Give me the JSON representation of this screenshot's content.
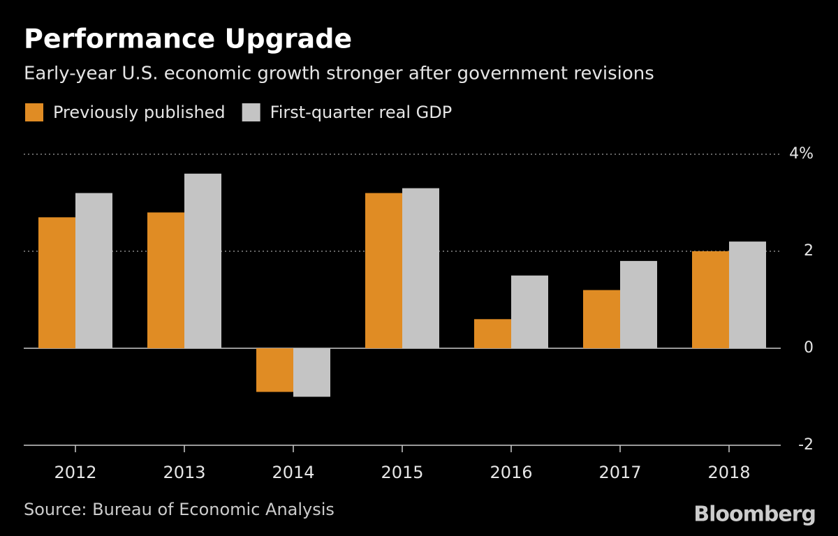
{
  "chart_data": {
    "type": "bar",
    "title": "Performance Upgrade",
    "subtitle": "Early-year U.S. economic growth stronger after government revisions",
    "categories": [
      "2012",
      "2013",
      "2014",
      "2015",
      "2016",
      "2017",
      "2018"
    ],
    "series": [
      {
        "name": "Previously published",
        "color": "#e08c24",
        "values": [
          2.7,
          2.8,
          -0.9,
          3.2,
          0.6,
          1.2,
          2.0
        ]
      },
      {
        "name": "First-quarter real GDP",
        "color": "#c4c4c4",
        "values": [
          3.2,
          3.6,
          -1.0,
          3.3,
          1.5,
          1.8,
          2.2
        ]
      }
    ],
    "ylim": [
      -2,
      4
    ],
    "yticks": [
      {
        "value": 4,
        "label": "4%"
      },
      2,
      0,
      -2
    ],
    "grid": true,
    "source": "Source: Bureau of Economic Analysis",
    "logo": "Bloomberg"
  }
}
